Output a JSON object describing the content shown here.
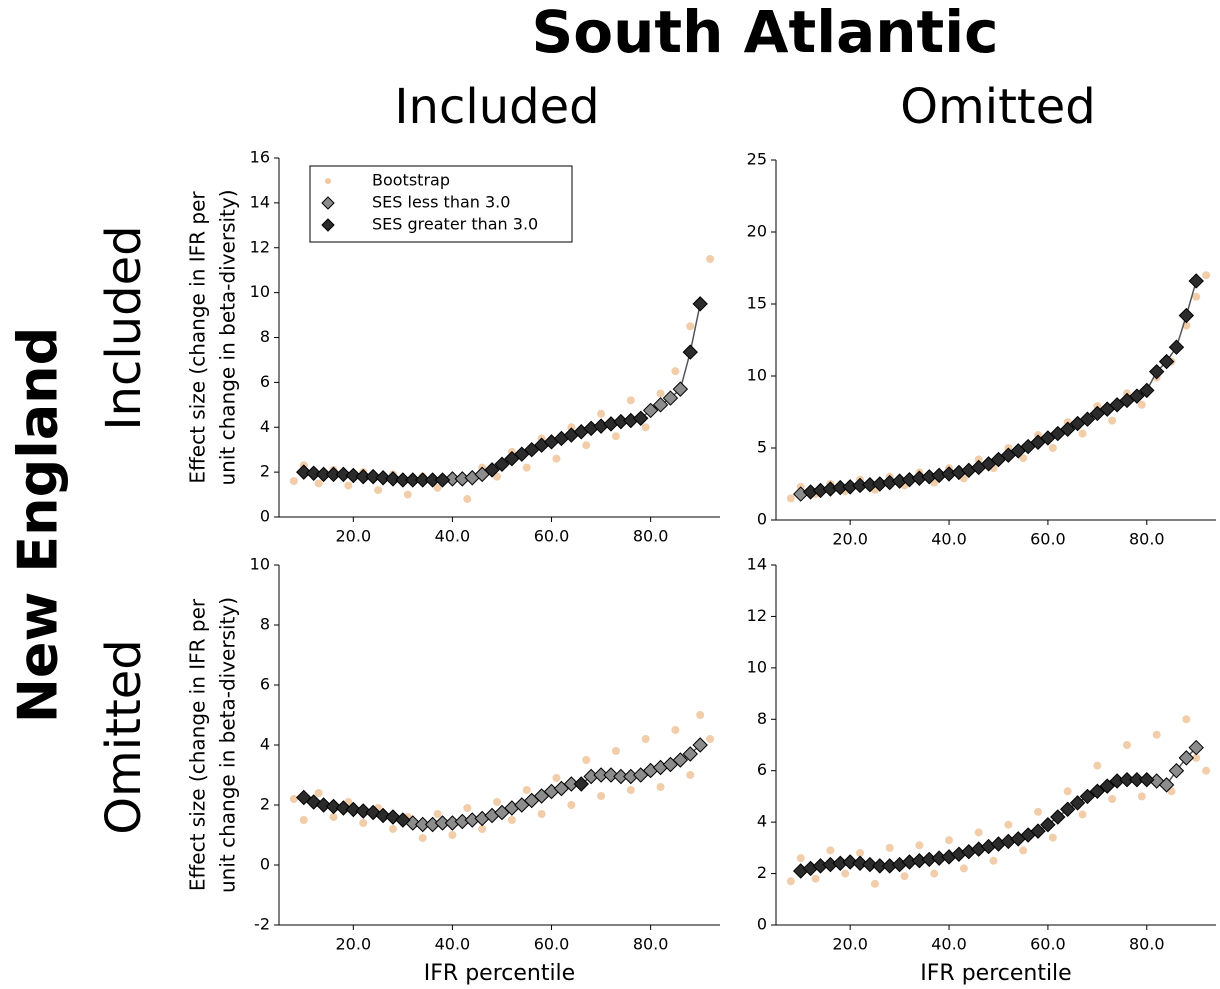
{
  "figure": {
    "title": "South Atlantic",
    "column_titles": [
      "Included",
      "Omitted"
    ],
    "row_label": "New England",
    "row_titles": [
      "Included",
      "Omitted"
    ]
  },
  "chart_data": [
    {
      "type": "scatter",
      "legend": "upper left",
      "ylabel": [
        "Effect size (change in IFR per",
        "unit change in beta-diversity)"
      ],
      "xlim": [
        5,
        94
      ],
      "ylim": [
        0,
        16
      ],
      "xticks": [
        {
          "value": 20,
          "label": "20.0"
        },
        {
          "value": 40,
          "label": "40.0"
        },
        {
          "value": 60,
          "label": "60.0"
        },
        {
          "value": 80,
          "label": "80.0"
        }
      ],
      "yticks": [
        0,
        2,
        4,
        6,
        8,
        10,
        12,
        14,
        16
      ],
      "x": [
        10,
        12,
        14,
        16,
        18,
        20,
        22,
        24,
        26,
        28,
        30,
        32,
        34,
        36,
        38,
        40,
        42,
        44,
        46,
        48,
        50,
        52,
        54,
        56,
        58,
        60,
        62,
        64,
        66,
        68,
        70,
        72,
        74,
        76,
        78,
        80,
        82,
        84,
        86,
        88,
        90
      ],
      "series": [
        {
          "name": "Bootstrap",
          "color": "#f0c8a0",
          "x": [
            8,
            10,
            13,
            16,
            19,
            22,
            25,
            28,
            31,
            34,
            37,
            40,
            43,
            46,
            49,
            52,
            55,
            58,
            61,
            64,
            67,
            70,
            73,
            76,
            79,
            82,
            85,
            88,
            90,
            92
          ],
          "values": [
            1.6,
            2.3,
            1.5,
            2.1,
            1.4,
            2.0,
            1.2,
            1.9,
            1.0,
            1.8,
            1.3,
            1.6,
            0.8,
            2.2,
            1.8,
            2.9,
            2.2,
            3.5,
            2.6,
            4.0,
            3.2,
            4.6,
            3.6,
            5.2,
            4.0,
            5.5,
            6.5,
            8.5,
            9.5,
            11.5
          ]
        },
        {
          "name": "SES less than 3.0",
          "color": "#8c8c8c",
          "values": [
            null,
            null,
            null,
            null,
            null,
            null,
            null,
            null,
            null,
            null,
            null,
            null,
            null,
            null,
            null,
            1.7,
            1.7,
            1.75,
            1.9,
            null,
            null,
            null,
            null,
            null,
            null,
            null,
            null,
            null,
            null,
            null,
            null,
            null,
            null,
            null,
            null,
            4.75,
            5.0,
            5.3,
            5.7,
            null,
            null
          ]
        },
        {
          "name": "SES greater than 3.0",
          "color": "#2b2b2b",
          "values": [
            2.0,
            1.95,
            1.9,
            1.9,
            1.9,
            1.85,
            1.8,
            1.8,
            1.75,
            1.7,
            1.65,
            1.65,
            1.65,
            1.65,
            1.65,
            null,
            null,
            null,
            null,
            2.1,
            2.35,
            2.6,
            2.8,
            3.0,
            3.2,
            3.35,
            3.5,
            3.65,
            3.8,
            3.95,
            4.05,
            4.15,
            4.25,
            4.3,
            4.4,
            null,
            null,
            null,
            null,
            7.35,
            9.5
          ]
        }
      ]
    },
    {
      "type": "scatter",
      "xlim": [
        5,
        94
      ],
      "ylim": [
        0,
        25
      ],
      "xticks": [
        {
          "value": 20,
          "label": "20.0"
        },
        {
          "value": 40,
          "label": "40.0"
        },
        {
          "value": 60,
          "label": "60.0"
        },
        {
          "value": 80,
          "label": "80.0"
        }
      ],
      "yticks": [
        0,
        5,
        10,
        15,
        20,
        25
      ],
      "x": [
        10,
        12,
        14,
        16,
        18,
        20,
        22,
        24,
        26,
        28,
        30,
        32,
        34,
        36,
        38,
        40,
        42,
        44,
        46,
        48,
        50,
        52,
        54,
        56,
        58,
        60,
        62,
        64,
        66,
        68,
        70,
        72,
        74,
        76,
        78,
        80,
        82,
        84,
        86,
        88,
        90
      ],
      "series": [
        {
          "color": "#f0c8a0",
          "x": [
            8,
            10,
            13,
            16,
            19,
            22,
            25,
            28,
            31,
            34,
            37,
            40,
            43,
            46,
            49,
            52,
            55,
            58,
            61,
            64,
            67,
            70,
            73,
            76,
            79,
            82,
            85,
            88,
            90,
            92
          ],
          "values": [
            1.5,
            2.3,
            1.8,
            2.5,
            2.0,
            2.8,
            2.1,
            3.0,
            2.4,
            3.3,
            2.6,
            3.6,
            2.9,
            4.2,
            3.6,
            5.0,
            4.3,
            5.9,
            5.0,
            6.8,
            6.0,
            7.9,
            6.9,
            8.8,
            8.0,
            9.9,
            11.0,
            13.5,
            15.5,
            17.0
          ]
        },
        {
          "color": "#8c8c8c",
          "values": [
            1.8,
            null,
            null,
            null,
            null,
            null,
            null,
            null,
            null,
            null,
            null,
            null,
            null,
            null,
            null,
            null,
            null,
            null,
            null,
            null,
            null,
            null,
            null,
            null,
            null,
            null,
            null,
            null,
            null,
            null,
            null,
            null,
            null,
            null,
            null,
            null,
            null,
            null,
            null,
            null,
            null
          ]
        },
        {
          "color": "#2b2b2b",
          "values": [
            null,
            1.95,
            2.05,
            2.15,
            2.25,
            2.3,
            2.4,
            2.45,
            2.5,
            2.6,
            2.7,
            2.8,
            2.9,
            3.0,
            3.1,
            3.2,
            3.3,
            3.45,
            3.65,
            3.9,
            4.2,
            4.5,
            4.8,
            5.1,
            5.4,
            5.7,
            6.0,
            6.3,
            6.7,
            7.0,
            7.4,
            7.7,
            8.0,
            8.3,
            8.6,
            9.0,
            10.3,
            11.0,
            12.0,
            14.2,
            16.6
          ]
        }
      ]
    },
    {
      "type": "scatter",
      "ylabel": [
        "Effect size (change in IFR per",
        "unit change in beta-diversity)"
      ],
      "xlabel": "IFR percentile",
      "xlim": [
        5,
        94
      ],
      "ylim": [
        -2,
        10
      ],
      "xticks": [
        {
          "value": 20,
          "label": "20.0"
        },
        {
          "value": 40,
          "label": "40.0"
        },
        {
          "value": 60,
          "label": "60.0"
        },
        {
          "value": 80,
          "label": "80.0"
        }
      ],
      "yticks": [
        -2,
        0,
        2,
        4,
        6,
        8,
        10
      ],
      "x": [
        10,
        12,
        14,
        16,
        18,
        20,
        22,
        24,
        26,
        28,
        30,
        32,
        34,
        36,
        38,
        40,
        42,
        44,
        46,
        48,
        50,
        52,
        54,
        56,
        58,
        60,
        62,
        64,
        66,
        68,
        70,
        72,
        74,
        76,
        78,
        80,
        82,
        84,
        86,
        88,
        90
      ],
      "series": [
        {
          "color": "#f0c8a0",
          "x": [
            8,
            10,
            13,
            16,
            19,
            22,
            25,
            28,
            31,
            34,
            37,
            40,
            43,
            46,
            49,
            52,
            55,
            58,
            61,
            64,
            67,
            70,
            73,
            76,
            79,
            82,
            85,
            88,
            90,
            92
          ],
          "values": [
            2.2,
            1.5,
            2.4,
            1.6,
            2.1,
            1.4,
            1.9,
            1.2,
            1.6,
            0.9,
            1.7,
            1.0,
            1.9,
            1.2,
            2.1,
            1.5,
            2.5,
            1.7,
            2.9,
            2.0,
            3.5,
            2.3,
            3.8,
            2.5,
            4.2,
            2.6,
            4.5,
            3.0,
            5.0,
            4.2
          ]
        },
        {
          "color": "#8c8c8c",
          "values": [
            null,
            null,
            null,
            null,
            null,
            null,
            null,
            null,
            null,
            null,
            null,
            1.4,
            1.35,
            1.35,
            1.4,
            1.4,
            1.45,
            1.5,
            1.55,
            1.65,
            1.75,
            1.9,
            2.0,
            2.15,
            2.3,
            2.45,
            2.55,
            2.7,
            null,
            2.95,
            3.0,
            3.0,
            2.95,
            2.95,
            3.0,
            3.15,
            3.25,
            3.35,
            3.5,
            3.7,
            4.0
          ]
        },
        {
          "color": "#2b2b2b",
          "values": [
            2.25,
            2.1,
            2.0,
            1.95,
            1.9,
            1.85,
            1.8,
            1.75,
            1.65,
            1.6,
            1.5,
            null,
            null,
            null,
            null,
            null,
            null,
            null,
            null,
            null,
            null,
            null,
            null,
            null,
            null,
            null,
            null,
            null,
            2.7,
            null,
            null,
            null,
            null,
            null,
            null,
            null,
            null,
            null,
            null,
            null,
            null
          ]
        }
      ]
    },
    {
      "type": "scatter",
      "xlabel": "IFR percentile",
      "xlim": [
        5,
        94
      ],
      "ylim": [
        0,
        14
      ],
      "xticks": [
        {
          "value": 20,
          "label": "20.0"
        },
        {
          "value": 40,
          "label": "40.0"
        },
        {
          "value": 60,
          "label": "60.0"
        },
        {
          "value": 80,
          "label": "80.0"
        }
      ],
      "yticks": [
        0,
        2,
        4,
        6,
        8,
        10,
        12,
        14
      ],
      "x": [
        10,
        12,
        14,
        16,
        18,
        20,
        22,
        24,
        26,
        28,
        30,
        32,
        34,
        36,
        38,
        40,
        42,
        44,
        46,
        48,
        50,
        52,
        54,
        56,
        58,
        60,
        62,
        64,
        66,
        68,
        70,
        72,
        74,
        76,
        78,
        80,
        82,
        84,
        86,
        88,
        90
      ],
      "series": [
        {
          "color": "#f0c8a0",
          "x": [
            8,
            10,
            13,
            16,
            19,
            22,
            25,
            28,
            31,
            34,
            37,
            40,
            43,
            46,
            49,
            52,
            55,
            58,
            61,
            64,
            67,
            70,
            73,
            76,
            79,
            82,
            85,
            88,
            90,
            92
          ],
          "values": [
            1.7,
            2.6,
            1.8,
            2.9,
            2.0,
            2.8,
            1.6,
            3.0,
            1.9,
            3.1,
            2.0,
            3.3,
            2.2,
            3.6,
            2.5,
            3.9,
            2.9,
            4.4,
            3.4,
            5.2,
            4.3,
            6.2,
            4.9,
            7.0,
            5.0,
            7.4,
            5.2,
            8.0,
            6.5,
            6.0
          ]
        },
        {
          "color": "#8c8c8c",
          "values": [
            null,
            null,
            null,
            null,
            null,
            null,
            null,
            null,
            null,
            null,
            null,
            null,
            null,
            null,
            null,
            null,
            null,
            null,
            null,
            null,
            null,
            null,
            null,
            null,
            null,
            null,
            null,
            null,
            null,
            null,
            null,
            null,
            null,
            null,
            null,
            null,
            5.6,
            5.45,
            6.0,
            6.5,
            6.9
          ]
        },
        {
          "color": "#2b2b2b",
          "values": [
            2.1,
            2.2,
            2.3,
            2.35,
            2.4,
            2.45,
            2.4,
            2.35,
            2.3,
            2.3,
            2.35,
            2.45,
            2.5,
            2.55,
            2.6,
            2.65,
            2.75,
            2.85,
            2.95,
            3.05,
            3.15,
            3.25,
            3.35,
            3.5,
            3.65,
            3.9,
            4.2,
            4.5,
            4.75,
            5.0,
            5.2,
            5.4,
            5.6,
            5.65,
            5.65,
            5.65,
            null,
            null,
            null,
            null,
            null
          ]
        }
      ]
    }
  ]
}
